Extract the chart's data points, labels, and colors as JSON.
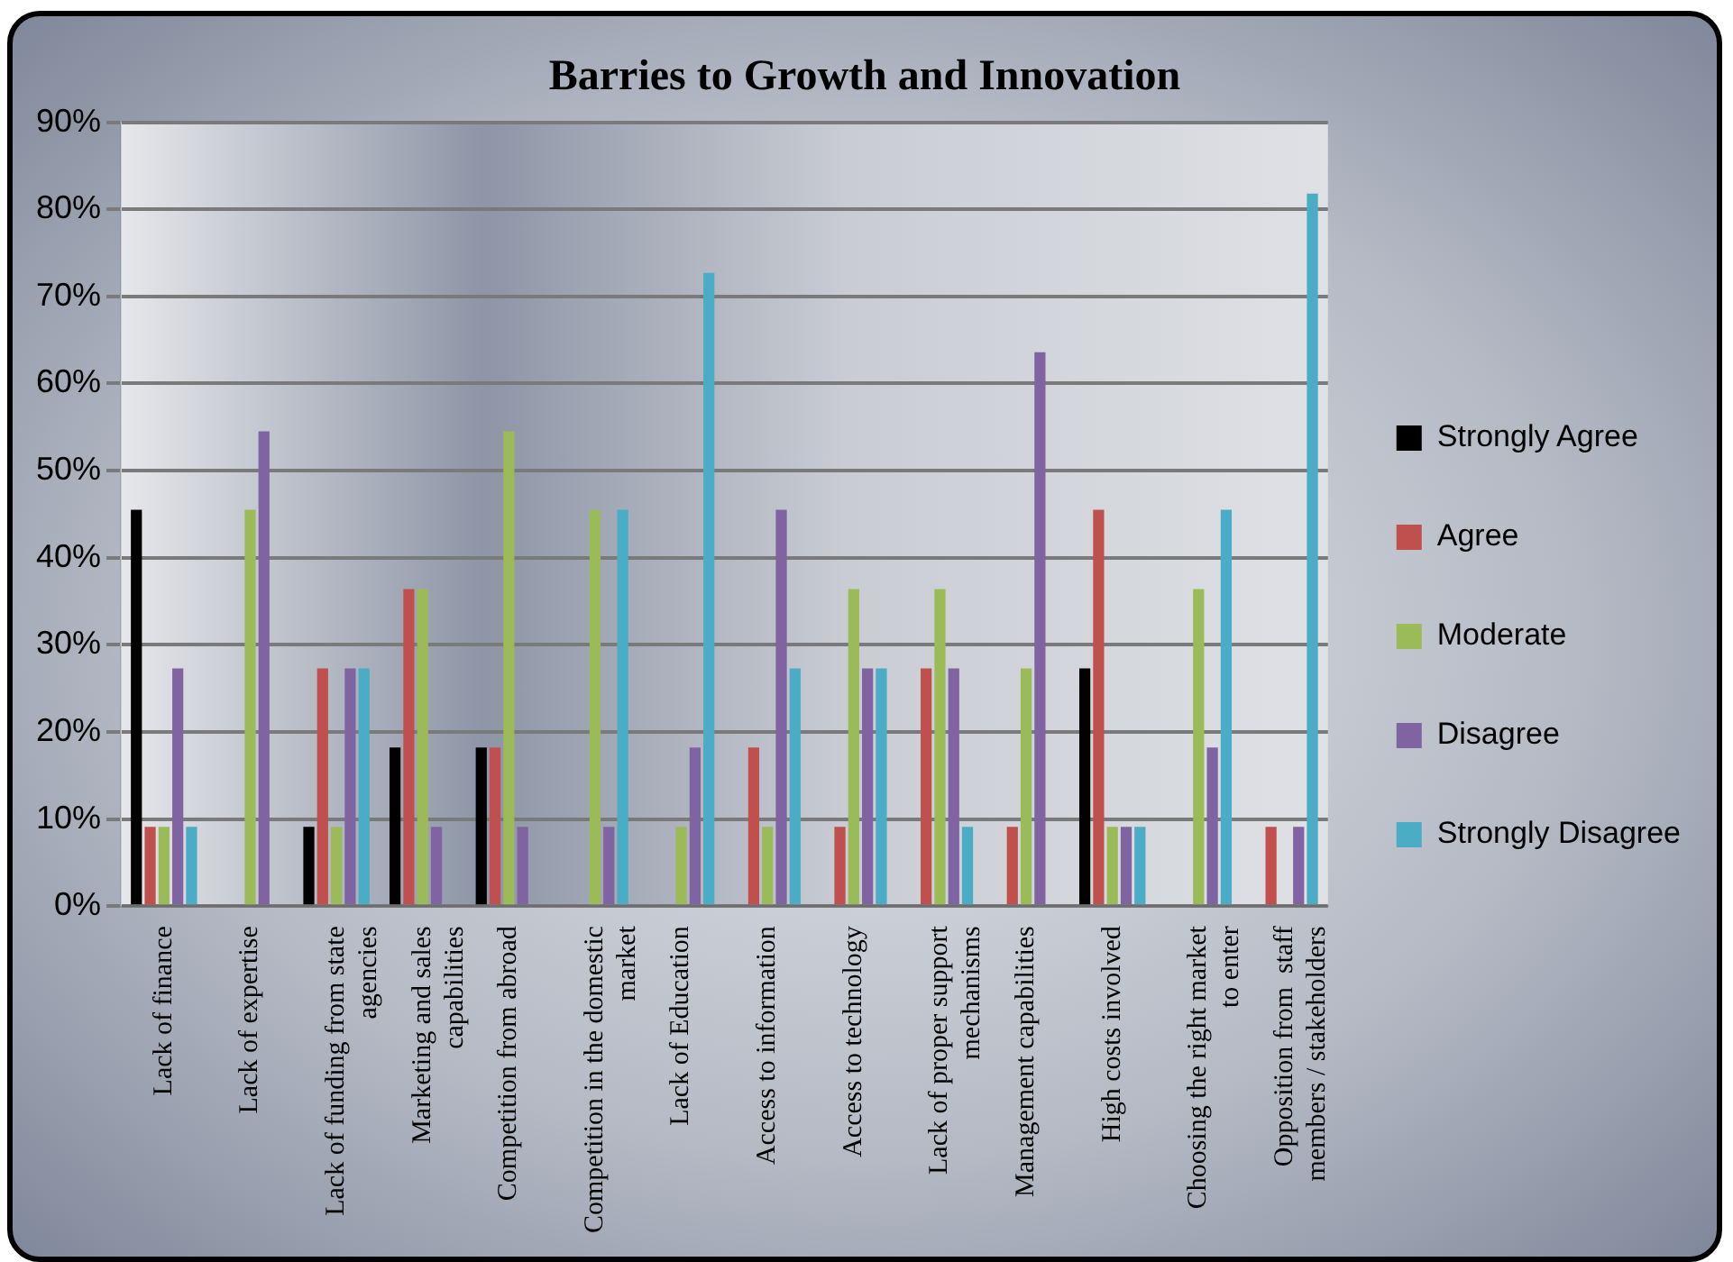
{
  "chart_data": {
    "type": "bar",
    "title": "Barries to Growth and Innovation",
    "categories": [
      "Lack of finance",
      "Lack of expertise",
      "Lack of funding from state agencies",
      "Marketing and sales capabilities",
      "Competition from abroad",
      "Competition in the domestic market",
      "Lack of Education",
      "Access to information",
      "Access to technology",
      "Lack of proper support mechanisms",
      "Management capabilities",
      "High costs involved",
      "Choosing the right market to enter",
      "Opposition from  staff members / stakeholders"
    ],
    "series": [
      {
        "name": "Strongly Agree",
        "color": "#000000",
        "values": [
          45.5,
          0,
          9.1,
          18.2,
          18.2,
          0,
          0,
          0,
          0,
          0,
          0,
          27.3,
          0,
          0
        ]
      },
      {
        "name": "Agree",
        "color": "#c0504d",
        "values": [
          9.1,
          0,
          27.3,
          36.4,
          18.2,
          0,
          0,
          18.2,
          9.1,
          27.3,
          9.1,
          45.5,
          0,
          9.1
        ]
      },
      {
        "name": "Moderate",
        "color": "#9bbb59",
        "values": [
          9.1,
          45.5,
          9.1,
          36.4,
          54.5,
          45.5,
          9.1,
          9.1,
          36.4,
          36.4,
          27.3,
          9.1,
          36.4,
          0
        ]
      },
      {
        "name": "Disagree",
        "color": "#8064a2",
        "values": [
          27.3,
          54.5,
          27.3,
          9.1,
          9.1,
          9.1,
          18.2,
          45.5,
          27.3,
          27.3,
          63.6,
          9.1,
          18.2,
          9.1
        ]
      },
      {
        "name": "Strongly Disagree",
        "color": "#4bacc6",
        "values": [
          9.1,
          0,
          27.3,
          0,
          0,
          45.5,
          72.7,
          27.3,
          27.3,
          9.1,
          0,
          9.1,
          45.5,
          81.8
        ]
      }
    ],
    "ylim": [
      0,
      90
    ],
    "yticks": [
      {
        "value": 0,
        "label": "0%"
      },
      {
        "value": 10,
        "label": "10%"
      },
      {
        "value": 20,
        "label": "20%"
      },
      {
        "value": 30,
        "label": "30%"
      },
      {
        "value": 40,
        "label": "40%"
      },
      {
        "value": 50,
        "label": "50%"
      },
      {
        "value": 60,
        "label": "60%"
      },
      {
        "value": 70,
        "label": "70%"
      },
      {
        "value": 80,
        "label": "80%"
      },
      {
        "value": 90,
        "label": "90%"
      }
    ],
    "grid": "y",
    "legend": "right"
  }
}
